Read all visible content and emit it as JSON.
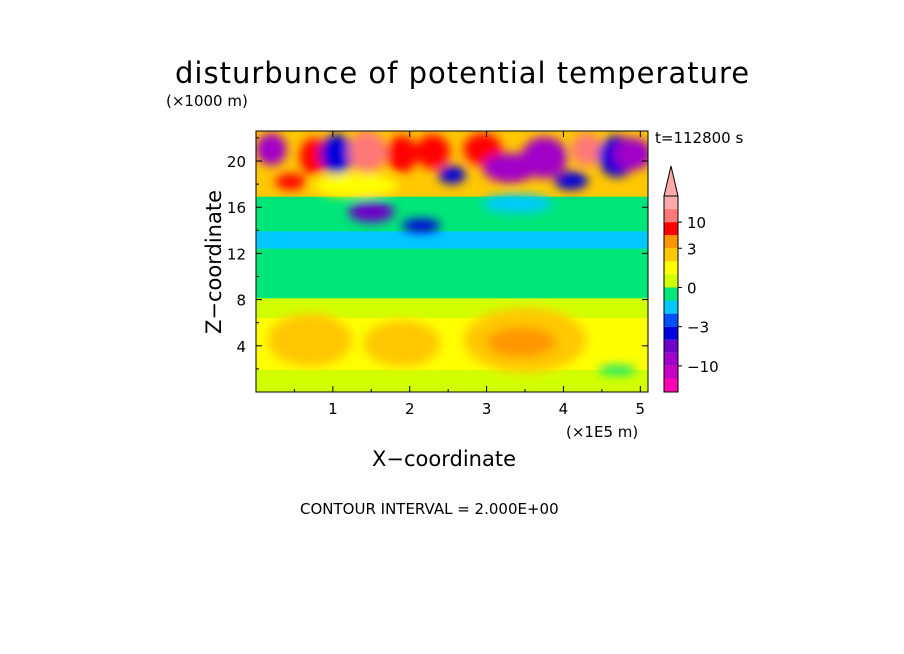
{
  "chart_data": {
    "type": "heatmap",
    "title": "disturbunce of potential temperature",
    "xlabel": "X−coordinate",
    "ylabel": "Z−coordinate",
    "x_unit": "(×1E5 m)",
    "y_unit": "(×1000 m)",
    "time_label": "t=112800 s",
    "contour_interval_label": "CONTOUR INTERVAL = 2.000E+00",
    "xlim": [
      0,
      5.1
    ],
    "ylim": [
      0,
      22.6
    ],
    "x_ticks": [
      1,
      2,
      3,
      4,
      5
    ],
    "x_tick_labels": [
      "1",
      "2",
      "3",
      "4",
      "5"
    ],
    "y_ticks": [
      4,
      8,
      12,
      16,
      20
    ],
    "y_tick_labels": [
      "4",
      "8",
      "12",
      "16",
      "20"
    ],
    "colorbar": {
      "levels": [
        -16,
        -12,
        -10,
        -6,
        -4,
        -3,
        -2,
        -1,
        0,
        1,
        2,
        3,
        6,
        10,
        16
      ],
      "labeled_values": [
        10,
        3,
        0,
        -3,
        -10
      ],
      "labels": [
        "10",
        "3",
        "0",
        "−3",
        "−10"
      ],
      "colors": [
        "#ff00b4",
        "#c800c8",
        "#a000c8",
        "#6e00c8",
        "#0000dc",
        "#0050ff",
        "#00c8ff",
        "#00e678",
        "#d2ff00",
        "#ffff00",
        "#ffc800",
        "#ff9600",
        "#ff0000",
        "#ff7878",
        "#ffaaaa"
      ]
    },
    "layers": [
      {
        "z_range": [
          0,
          2
        ],
        "value": 0.5,
        "color": "#d2ff00"
      },
      {
        "z_range": [
          2,
          6.5
        ],
        "value": 1.5,
        "color": "#ffff00"
      },
      {
        "z_range": [
          6.5,
          8.2
        ],
        "value": 0.5,
        "color": "#d2ff00"
      },
      {
        "z_range": [
          8.2,
          12.5
        ],
        "value": -0.5,
        "color": "#00e678"
      },
      {
        "z_range": [
          12.5,
          14
        ],
        "value": -1.5,
        "color": "#00c8ff"
      },
      {
        "z_range": [
          14,
          17
        ],
        "value": -0.5,
        "color": "#00e678"
      },
      {
        "z_range": [
          17,
          22.6
        ],
        "value": 2.5,
        "color": "#ffc800"
      }
    ],
    "blobs": [
      {
        "x": 0.7,
        "z": 4.5,
        "rx": 0.55,
        "rz": 2.3,
        "value": 2.5
      },
      {
        "x": 1.9,
        "z": 4.2,
        "rx": 0.5,
        "rz": 2.0,
        "value": 2.5
      },
      {
        "x": 3.5,
        "z": 4.5,
        "rx": 0.8,
        "rz": 2.8,
        "value": 2.5
      },
      {
        "x": 3.45,
        "z": 4.3,
        "rx": 0.45,
        "rz": 1.3,
        "value": 4.0
      },
      {
        "x": 1.3,
        "z": 17.9,
        "rx": 0.55,
        "rz": 1.0,
        "value": 1.5
      },
      {
        "x": 1.5,
        "z": 15.6,
        "rx": 0.3,
        "rz": 0.9,
        "value": -6.0
      },
      {
        "x": 2.15,
        "z": 14.4,
        "rx": 0.25,
        "rz": 0.6,
        "value": -4.0
      },
      {
        "x": 3.4,
        "z": 16.3,
        "rx": 0.45,
        "rz": 0.8,
        "value": -2.0
      },
      {
        "x": 4.7,
        "z": 1.9,
        "rx": 0.25,
        "rz": 0.4,
        "value": -1.0
      },
      {
        "x": 0.2,
        "z": 21.0,
        "rx": 0.2,
        "rz": 1.4,
        "value": -10.0
      },
      {
        "x": 0.45,
        "z": 18.2,
        "rx": 0.2,
        "rz": 0.7,
        "value": 6.0
      },
      {
        "x": 0.75,
        "z": 20.4,
        "rx": 0.18,
        "rz": 1.6,
        "value": 6.0
      },
      {
        "x": 1.05,
        "z": 20.6,
        "rx": 0.22,
        "rz": 1.7,
        "value": -4.0
      },
      {
        "x": 1.45,
        "z": 20.8,
        "rx": 0.25,
        "rz": 1.8,
        "value": 10.0
      },
      {
        "x": 1.9,
        "z": 20.6,
        "rx": 0.2,
        "rz": 1.6,
        "value": 6.0
      },
      {
        "x": 2.3,
        "z": 20.8,
        "rx": 0.22,
        "rz": 1.5,
        "value": 6.0
      },
      {
        "x": 2.55,
        "z": 18.8,
        "rx": 0.18,
        "rz": 0.8,
        "value": -4.0
      },
      {
        "x": 2.95,
        "z": 21.0,
        "rx": 0.25,
        "rz": 1.4,
        "value": 6.0
      },
      {
        "x": 3.3,
        "z": 19.4,
        "rx": 0.35,
        "rz": 1.3,
        "value": -10.0
      },
      {
        "x": 3.75,
        "z": 20.3,
        "rx": 0.3,
        "rz": 1.8,
        "value": -10.0
      },
      {
        "x": 4.1,
        "z": 18.3,
        "rx": 0.22,
        "rz": 0.8,
        "value": -4.0
      },
      {
        "x": 4.3,
        "z": 21.0,
        "rx": 0.2,
        "rz": 1.4,
        "value": 10.0
      },
      {
        "x": 4.7,
        "z": 20.4,
        "rx": 0.25,
        "rz": 1.8,
        "value": -4.0
      },
      {
        "x": 4.9,
        "z": 20.6,
        "rx": 0.25,
        "rz": 1.4,
        "value": -10.0
      }
    ]
  }
}
